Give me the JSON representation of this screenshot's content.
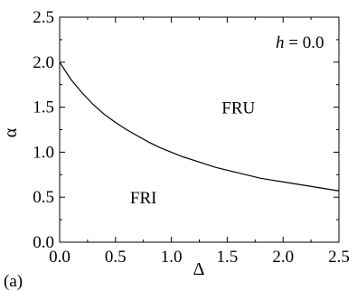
{
  "chart_data": {
    "type": "line",
    "panel_label": "(a)",
    "annotation": {
      "variable": "h",
      "equals": " = 0.0"
    },
    "xlabel": "Δ",
    "ylabel": "α",
    "xlim": [
      0.0,
      2.5
    ],
    "ylim": [
      0.0,
      2.5
    ],
    "x_ticks": [
      "0.0",
      "0.5",
      "1.0",
      "1.5",
      "2.0",
      "2.5"
    ],
    "y_ticks": [
      "0.0",
      "0.5",
      "1.0",
      "1.5",
      "2.0",
      "2.5"
    ],
    "regions": [
      {
        "label": "FRU",
        "x": 1.6,
        "y": 1.5
      },
      {
        "label": "FRI",
        "x": 0.75,
        "y": 0.5
      }
    ],
    "series": [
      {
        "x": [
          0.0,
          0.1,
          0.2,
          0.3,
          0.4,
          0.5,
          0.6,
          0.7,
          0.8,
          0.9,
          1.0,
          1.1,
          1.2,
          1.3,
          1.4,
          1.5,
          1.6,
          1.7,
          1.8,
          1.9,
          2.0,
          2.1,
          2.2,
          2.3,
          2.4,
          2.5
        ],
        "y": [
          2.0,
          1.81,
          1.66,
          1.53,
          1.42,
          1.33,
          1.25,
          1.18,
          1.11,
          1.05,
          1.0,
          0.95,
          0.91,
          0.87,
          0.83,
          0.8,
          0.77,
          0.74,
          0.71,
          0.69,
          0.67,
          0.65,
          0.63,
          0.61,
          0.59,
          0.57
        ]
      }
    ],
    "grid": false,
    "legend": "none"
  }
}
